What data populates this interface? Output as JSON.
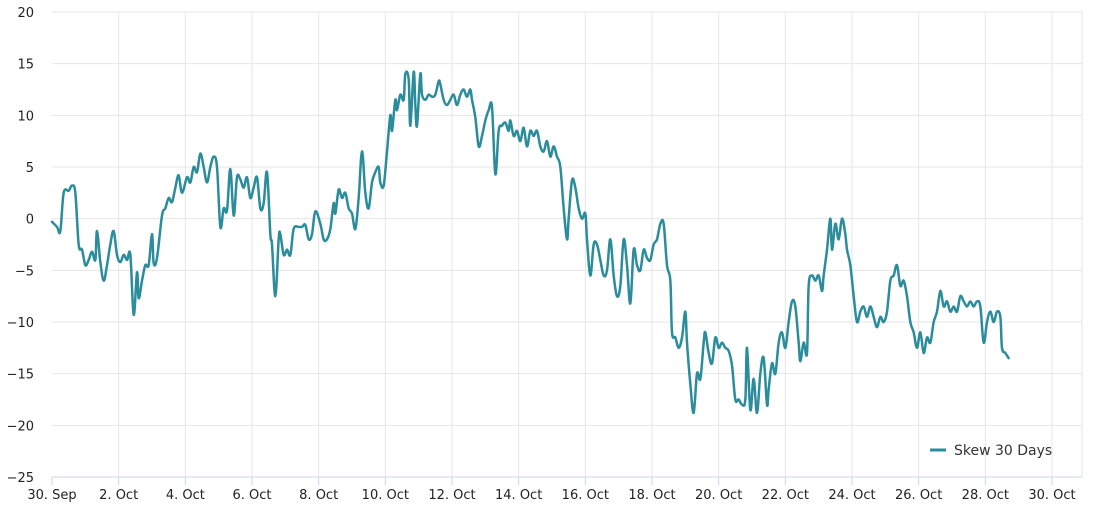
{
  "chart_data": {
    "type": "line",
    "title": "",
    "xlabel": "",
    "ylabel": "",
    "ylim": [
      -25,
      20
    ],
    "y_ticks": [
      20,
      15,
      10,
      5,
      0,
      -5,
      -10,
      -15,
      -20,
      -25
    ],
    "y_tick_labels": [
      "20",
      "15",
      "10",
      "5",
      "0",
      "−5",
      "−10",
      "−15",
      "−20",
      "−25"
    ],
    "x_domain": [
      0,
      30.9
    ],
    "x_ticks": [
      0,
      2,
      4,
      6,
      8,
      10,
      12,
      14,
      16,
      18,
      20,
      22,
      24,
      26,
      28,
      30
    ],
    "x_tick_labels": [
      "30. Sep",
      "2. Oct",
      "4. Oct",
      "6. Oct",
      "8. Oct",
      "10. Oct",
      "12. Oct",
      "14. Oct",
      "16. Oct",
      "18. Oct",
      "20. Oct",
      "22. Oct",
      "24. Oct",
      "26. Oct",
      "28. Oct",
      "30. Oct"
    ],
    "grid": true,
    "legend_position": "bottom-right",
    "series": [
      {
        "name": "Skew 30 Days",
        "color": "#2b8c9b",
        "points": [
          [
            0.0,
            -0.3
          ],
          [
            0.15,
            -0.8
          ],
          [
            0.25,
            -1.2
          ],
          [
            0.35,
            2.5
          ],
          [
            0.5,
            2.7
          ],
          [
            0.6,
            3.2
          ],
          [
            0.7,
            2.5
          ],
          [
            0.8,
            -2.5
          ],
          [
            0.9,
            -3.0
          ],
          [
            1.0,
            -4.5
          ],
          [
            1.1,
            -4.0
          ],
          [
            1.2,
            -3.2
          ],
          [
            1.3,
            -4.0
          ],
          [
            1.35,
            -1.2
          ],
          [
            1.45,
            -4.2
          ],
          [
            1.55,
            -6.0
          ],
          [
            1.65,
            -4.5
          ],
          [
            1.75,
            -2.5
          ],
          [
            1.85,
            -1.2
          ],
          [
            1.95,
            -3.5
          ],
          [
            2.05,
            -4.2
          ],
          [
            2.15,
            -3.5
          ],
          [
            2.25,
            -4.0
          ],
          [
            2.35,
            -3.5
          ],
          [
            2.45,
            -9.3
          ],
          [
            2.55,
            -5.2
          ],
          [
            2.6,
            -7.7
          ],
          [
            2.7,
            -6.0
          ],
          [
            2.8,
            -4.5
          ],
          [
            2.9,
            -4.5
          ],
          [
            3.0,
            -1.5
          ],
          [
            3.05,
            -4.3
          ],
          [
            3.15,
            -3.8
          ],
          [
            3.3,
            0.3
          ],
          [
            3.4,
            1.0
          ],
          [
            3.5,
            2.0
          ],
          [
            3.6,
            1.6
          ],
          [
            3.7,
            3.0
          ],
          [
            3.8,
            4.2
          ],
          [
            3.9,
            2.5
          ],
          [
            4.05,
            4.0
          ],
          [
            4.15,
            3.5
          ],
          [
            4.25,
            5.0
          ],
          [
            4.35,
            4.5
          ],
          [
            4.45,
            6.3
          ],
          [
            4.55,
            5.0
          ],
          [
            4.65,
            3.5
          ],
          [
            4.75,
            5.0
          ],
          [
            4.85,
            6.0
          ],
          [
            4.95,
            5.0
          ],
          [
            5.05,
            -0.8
          ],
          [
            5.15,
            1.0
          ],
          [
            5.25,
            0.8
          ],
          [
            5.35,
            4.8
          ],
          [
            5.45,
            0.3
          ],
          [
            5.55,
            4.0
          ],
          [
            5.65,
            3.8
          ],
          [
            5.75,
            3.0
          ],
          [
            5.85,
            4.0
          ],
          [
            5.95,
            2.0
          ],
          [
            6.05,
            3.0
          ],
          [
            6.15,
            4.0
          ],
          [
            6.25,
            1.0
          ],
          [
            6.35,
            1.5
          ],
          [
            6.45,
            4.5
          ],
          [
            6.55,
            -1.5
          ],
          [
            6.6,
            -2.5
          ],
          [
            6.7,
            -7.5
          ],
          [
            6.8,
            -2.0
          ],
          [
            6.85,
            -1.5
          ],
          [
            6.95,
            -3.5
          ],
          [
            7.05,
            -3.0
          ],
          [
            7.15,
            -3.5
          ],
          [
            7.25,
            -1.0
          ],
          [
            7.4,
            -0.8
          ],
          [
            7.5,
            -0.8
          ],
          [
            7.6,
            -0.6
          ],
          [
            7.7,
            -2.0
          ],
          [
            7.8,
            -1.5
          ],
          [
            7.9,
            0.7
          ],
          [
            8.05,
            -0.5
          ],
          [
            8.15,
            -2.0
          ],
          [
            8.25,
            -2.0
          ],
          [
            8.35,
            -1.0
          ],
          [
            8.45,
            1.5
          ],
          [
            8.5,
            0.5
          ],
          [
            8.6,
            2.8
          ],
          [
            8.7,
            2.0
          ],
          [
            8.8,
            2.5
          ],
          [
            8.9,
            1.0
          ],
          [
            9.0,
            0.5
          ],
          [
            9.1,
            -1.0
          ],
          [
            9.2,
            2.0
          ],
          [
            9.3,
            6.5
          ],
          [
            9.4,
            2.5
          ],
          [
            9.5,
            1.0
          ],
          [
            9.6,
            3.5
          ],
          [
            9.7,
            4.5
          ],
          [
            9.8,
            5.0
          ],
          [
            9.85,
            3.5
          ],
          [
            9.95,
            3.2
          ],
          [
            10.05,
            6.5
          ],
          [
            10.15,
            10.0
          ],
          [
            10.2,
            8.5
          ],
          [
            10.3,
            11.5
          ],
          [
            10.35,
            10.5
          ],
          [
            10.45,
            12.0
          ],
          [
            10.55,
            11.5
          ],
          [
            10.6,
            14.0
          ],
          [
            10.7,
            13.5
          ],
          [
            10.75,
            9.0
          ],
          [
            10.85,
            14.2
          ],
          [
            10.9,
            11.0
          ],
          [
            10.95,
            9.0
          ],
          [
            11.05,
            14.0
          ],
          [
            11.1,
            12.0
          ],
          [
            11.2,
            11.5
          ],
          [
            11.3,
            12.0
          ],
          [
            11.4,
            11.8
          ],
          [
            11.5,
            12.0
          ],
          [
            11.6,
            13.3
          ],
          [
            11.65,
            13.0
          ],
          [
            11.75,
            11.5
          ],
          [
            11.85,
            11.0
          ],
          [
            11.95,
            11.5
          ],
          [
            12.05,
            12.0
          ],
          [
            12.15,
            11.0
          ],
          [
            12.25,
            12.0
          ],
          [
            12.35,
            12.5
          ],
          [
            12.45,
            11.8
          ],
          [
            12.55,
            12.5
          ],
          [
            12.6,
            11.5
          ],
          [
            12.7,
            9.8
          ],
          [
            12.8,
            7.0
          ],
          [
            12.9,
            8.0
          ],
          [
            13.0,
            9.5
          ],
          [
            13.1,
            10.5
          ],
          [
            13.2,
            10.8
          ],
          [
            13.3,
            4.3
          ],
          [
            13.4,
            8.5
          ],
          [
            13.5,
            9.0
          ],
          [
            13.6,
            9.3
          ],
          [
            13.7,
            8.5
          ],
          [
            13.75,
            9.5
          ],
          [
            13.85,
            8.0
          ],
          [
            13.95,
            8.5
          ],
          [
            14.05,
            7.5
          ],
          [
            14.15,
            8.8
          ],
          [
            14.25,
            7.0
          ],
          [
            14.35,
            8.5
          ],
          [
            14.45,
            8.0
          ],
          [
            14.55,
            8.5
          ],
          [
            14.65,
            7.0
          ],
          [
            14.75,
            6.5
          ],
          [
            14.85,
            7.5
          ],
          [
            14.95,
            6.0
          ],
          [
            15.05,
            7.0
          ],
          [
            15.15,
            6.0
          ],
          [
            15.25,
            5.0
          ],
          [
            15.35,
            1.0
          ],
          [
            15.45,
            -2.0
          ],
          [
            15.5,
            0.0
          ],
          [
            15.6,
            3.7
          ],
          [
            15.7,
            3.0
          ],
          [
            15.8,
            1.0
          ],
          [
            15.9,
            0.0
          ],
          [
            16.0,
            0.5
          ],
          [
            16.05,
            -2.0
          ],
          [
            16.15,
            -5.5
          ],
          [
            16.25,
            -2.5
          ],
          [
            16.35,
            -2.5
          ],
          [
            16.45,
            -4.0
          ],
          [
            16.55,
            -5.5
          ],
          [
            16.65,
            -5.0
          ],
          [
            16.75,
            -2.0
          ],
          [
            16.85,
            -5.5
          ],
          [
            16.95,
            -7.5
          ],
          [
            17.05,
            -6.5
          ],
          [
            17.15,
            -2.0
          ],
          [
            17.25,
            -4.5
          ],
          [
            17.35,
            -8.2
          ],
          [
            17.45,
            -3.0
          ],
          [
            17.55,
            -4.5
          ],
          [
            17.65,
            -5.0
          ],
          [
            17.75,
            -3.0
          ],
          [
            17.85,
            -3.8
          ],
          [
            17.95,
            -4.0
          ],
          [
            18.05,
            -2.5
          ],
          [
            18.15,
            -2.0
          ],
          [
            18.25,
            -0.5
          ],
          [
            18.35,
            -0.5
          ],
          [
            18.45,
            -4.5
          ],
          [
            18.55,
            -6.0
          ],
          [
            18.6,
            -11.0
          ],
          [
            18.7,
            -11.5
          ],
          [
            18.8,
            -12.5
          ],
          [
            18.9,
            -11.5
          ],
          [
            19.0,
            -9.0
          ],
          [
            19.05,
            -12.0
          ],
          [
            19.15,
            -16.0
          ],
          [
            19.25,
            -18.8
          ],
          [
            19.35,
            -15.0
          ],
          [
            19.45,
            -15.5
          ],
          [
            19.55,
            -12.0
          ],
          [
            19.6,
            -11.0
          ],
          [
            19.7,
            -13.0
          ],
          [
            19.8,
            -14.0
          ],
          [
            19.9,
            -11.5
          ],
          [
            20.0,
            -12.5
          ],
          [
            20.1,
            -12.0
          ],
          [
            20.2,
            -12.5
          ],
          [
            20.3,
            -12.8
          ],
          [
            20.4,
            -14.2
          ],
          [
            20.5,
            -17.5
          ],
          [
            20.6,
            -17.5
          ],
          [
            20.7,
            -18.0
          ],
          [
            20.8,
            -17.5
          ],
          [
            20.85,
            -12.5
          ],
          [
            20.95,
            -18.5
          ],
          [
            21.05,
            -15.5
          ],
          [
            21.15,
            -18.8
          ],
          [
            21.25,
            -15.0
          ],
          [
            21.35,
            -13.5
          ],
          [
            21.45,
            -18.0
          ],
          [
            21.5,
            -16.5
          ],
          [
            21.6,
            -14.0
          ],
          [
            21.7,
            -15.0
          ],
          [
            21.8,
            -12.0
          ],
          [
            21.9,
            -11.0
          ],
          [
            22.0,
            -12.5
          ],
          [
            22.1,
            -10.0
          ],
          [
            22.2,
            -8.0
          ],
          [
            22.3,
            -8.5
          ],
          [
            22.4,
            -12.0
          ],
          [
            22.45,
            -13.8
          ],
          [
            22.55,
            -12.0
          ],
          [
            22.65,
            -13.0
          ],
          [
            22.7,
            -6.5
          ],
          [
            22.8,
            -5.5
          ],
          [
            22.9,
            -6.0
          ],
          [
            23.0,
            -5.5
          ],
          [
            23.1,
            -7.0
          ],
          [
            23.15,
            -5.5
          ],
          [
            23.25,
            -3.0
          ],
          [
            23.35,
            0.0
          ],
          [
            23.4,
            -3.0
          ],
          [
            23.5,
            -0.5
          ],
          [
            23.6,
            -2.0
          ],
          [
            23.7,
            0.0
          ],
          [
            23.8,
            -1.5
          ],
          [
            23.85,
            -3.0
          ],
          [
            23.95,
            -4.5
          ],
          [
            24.05,
            -7.5
          ],
          [
            24.15,
            -10.0
          ],
          [
            24.25,
            -9.0
          ],
          [
            24.35,
            -8.5
          ],
          [
            24.45,
            -9.5
          ],
          [
            24.55,
            -8.5
          ],
          [
            24.65,
            -9.5
          ],
          [
            24.75,
            -10.5
          ],
          [
            24.85,
            -9.5
          ],
          [
            24.95,
            -10.0
          ],
          [
            25.05,
            -9.0
          ],
          [
            25.15,
            -6.0
          ],
          [
            25.25,
            -5.5
          ],
          [
            25.35,
            -4.5
          ],
          [
            25.45,
            -6.5
          ],
          [
            25.55,
            -6.0
          ],
          [
            25.65,
            -7.5
          ],
          [
            25.75,
            -10.0
          ],
          [
            25.85,
            -11.0
          ],
          [
            25.95,
            -12.5
          ],
          [
            26.05,
            -11.0
          ],
          [
            26.15,
            -13.0
          ],
          [
            26.25,
            -11.5
          ],
          [
            26.35,
            -12.0
          ],
          [
            26.45,
            -10.0
          ],
          [
            26.55,
            -9.0
          ],
          [
            26.65,
            -7.0
          ],
          [
            26.75,
            -8.5
          ],
          [
            26.85,
            -8.0
          ],
          [
            26.95,
            -9.0
          ],
          [
            27.05,
            -8.5
          ],
          [
            27.15,
            -9.0
          ],
          [
            27.25,
            -7.5
          ],
          [
            27.35,
            -8.0
          ],
          [
            27.45,
            -8.5
          ],
          [
            27.55,
            -8.0
          ],
          [
            27.65,
            -8.5
          ],
          [
            27.75,
            -8.0
          ],
          [
            27.85,
            -8.5
          ],
          [
            27.95,
            -12.0
          ],
          [
            28.05,
            -10.0
          ],
          [
            28.15,
            -9.0
          ],
          [
            28.25,
            -10.0
          ],
          [
            28.35,
            -9.0
          ],
          [
            28.45,
            -9.5
          ],
          [
            28.5,
            -12.5
          ],
          [
            28.6,
            -13.0
          ],
          [
            28.7,
            -13.5
          ]
        ]
      }
    ]
  }
}
